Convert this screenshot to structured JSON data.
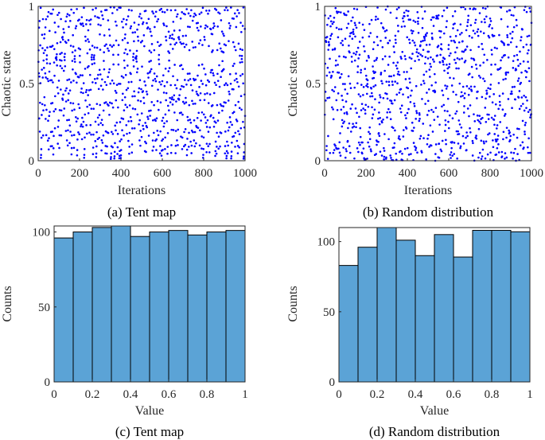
{
  "colors": {
    "scatter_dot": "#0000ff",
    "bar_fill": "#5ba3d6",
    "bar_edge": "#000000",
    "axis": "#262626"
  },
  "chart_data": [
    {
      "type": "scatter",
      "caption": "(a) Tent map",
      "xlabel": "Iterations",
      "ylabel": "Chaotic state",
      "xlim": [
        0,
        1000
      ],
      "ylim": [
        0,
        1
      ],
      "xticks": [
        "0",
        "200",
        "400",
        "600",
        "800",
        "1000"
      ],
      "yticks": [
        "0",
        "0.5",
        "1"
      ],
      "n_points": 1000,
      "generator": "tent",
      "seed": 0.3219
    },
    {
      "type": "scatter",
      "caption": "(b) Random distribution",
      "xlabel": "Iterations",
      "ylabel": "Chaotic state",
      "xlim": [
        0,
        1000
      ],
      "ylim": [
        0,
        1
      ],
      "xticks": [
        "0",
        "200",
        "400",
        "600",
        "800",
        "1000"
      ],
      "yticks": [
        "0",
        "0.5",
        "1"
      ],
      "n_points": 1000,
      "generator": "uniform",
      "seed": 7
    },
    {
      "type": "bar",
      "caption": "(c) Tent map",
      "xlabel": "Value",
      "ylabel": "Counts",
      "bin_edges": [
        0,
        0.1,
        0.2,
        0.3,
        0.4,
        0.5,
        0.6,
        0.7,
        0.8,
        0.9,
        1.0
      ],
      "values": [
        96,
        100,
        103,
        104,
        97,
        100,
        101,
        98,
        100,
        101
      ],
      "xlim": [
        0,
        1
      ],
      "ylim": [
        0,
        104
      ],
      "xticks": [
        "0",
        "0.2",
        "0.4",
        "0.6",
        "0.8",
        "1"
      ],
      "yticks": [
        "0",
        "50",
        "100"
      ]
    },
    {
      "type": "bar",
      "caption": "(d) Random distribution",
      "xlabel": "Value",
      "ylabel": "Counts",
      "bin_edges": [
        0,
        0.1,
        0.2,
        0.3,
        0.4,
        0.5,
        0.6,
        0.7,
        0.8,
        0.9,
        1.0
      ],
      "values": [
        83,
        96,
        110,
        101,
        90,
        105,
        89,
        108,
        108,
        107
      ],
      "xlim": [
        0,
        1
      ],
      "ylim": [
        0,
        110
      ],
      "xticks": [
        "0",
        "0.2",
        "0.4",
        "0.6",
        "0.8",
        "1"
      ],
      "yticks": [
        "0",
        "50",
        "100"
      ]
    }
  ]
}
